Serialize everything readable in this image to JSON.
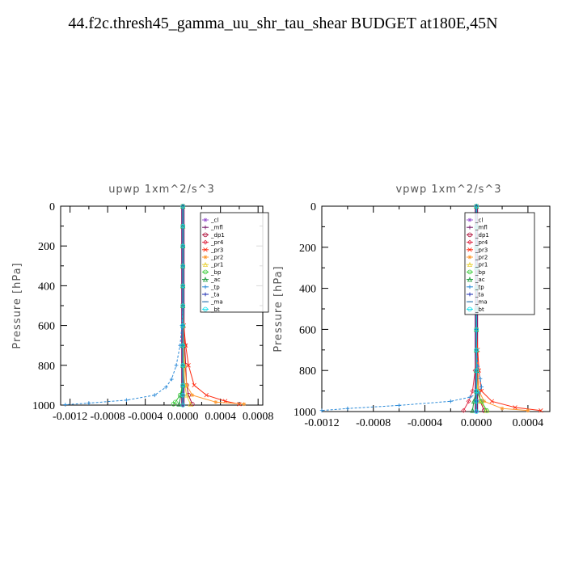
{
  "title": "44.f2c.thresh45_gamma_uu_shr_tau_shear  BUDGET at180E,45N",
  "legend_labels": [
    "_cl",
    "_mfl",
    "_dp1",
    "_pr4",
    "_pr3",
    "_pr2",
    "_pr1",
    "_bp",
    "_ac",
    "_tp",
    "_ta",
    "_ma",
    "_bt"
  ],
  "colors": {
    "_cl": "#9b59d0",
    "_mfl": "#7a1f6e",
    "_dp1": "#b0103a",
    "_pr4": "#e0304a",
    "_pr3": "#ff2a10",
    "_pr2": "#ff9a30",
    "_pr1": "#e8d23a",
    "_bp": "#3acc3a",
    "_ac": "#1a9a3a",
    "_tp": "#2a8ad8",
    "_ta": "#1a2ab0",
    "_ma": "#1a6aaa",
    "_bt": "#10e0ee"
  },
  "chart_data": [
    {
      "type": "line",
      "title": "upwp  1xm^2/s^3",
      "ylabel": "Pressure [hPa]",
      "xlim": [
        -0.0013,
        0.00085
      ],
      "ylim": [
        1000,
        0
      ],
      "xticks": [
        "-0.0012",
        "-0.0008",
        "-0.0004",
        "0.0000",
        "0.0004",
        "0.0008"
      ],
      "xtick_values": [
        -0.0012,
        -0.0008,
        -0.0004,
        0.0,
        0.0004,
        0.0008
      ],
      "yticks": [
        0,
        200,
        400,
        600,
        800,
        1000
      ],
      "legend_position": "top-right",
      "series": [
        {
          "name": "_cl",
          "x": [
            0,
            0,
            0,
            0,
            0,
            0,
            0,
            0,
            0,
            0,
            0,
            0
          ],
          "y": [
            0,
            100,
            200,
            300,
            400,
            500,
            600,
            700,
            800,
            900,
            950,
            1000
          ]
        },
        {
          "name": "_mfl",
          "x": [
            0,
            0,
            0,
            0,
            0,
            0,
            0,
            0,
            0,
            0,
            0,
            0
          ],
          "y": [
            0,
            100,
            200,
            300,
            400,
            500,
            600,
            700,
            800,
            900,
            950,
            1000
          ]
        },
        {
          "name": "_dp1",
          "x": [
            0,
            0,
            0,
            0,
            0,
            0,
            0,
            2e-05,
            3e-05,
            4e-05,
            6e-05,
            0.0001
          ],
          "y": [
            0,
            100,
            200,
            300,
            400,
            500,
            600,
            700,
            800,
            900,
            950,
            995
          ]
        },
        {
          "name": "_pr4",
          "x": [
            0,
            0,
            0,
            0,
            0,
            0,
            0,
            0,
            0,
            0,
            0,
            0
          ],
          "y": [
            0,
            100,
            200,
            300,
            400,
            500,
            600,
            700,
            800,
            900,
            950,
            1000
          ]
        },
        {
          "name": "_pr3",
          "x": [
            0,
            0,
            0,
            0,
            0,
            0,
            1e-05,
            3e-05,
            6e-05,
            0.00012,
            0.00025,
            0.00045,
            0.0006
          ],
          "y": [
            0,
            100,
            200,
            300,
            400,
            500,
            600,
            700,
            800,
            900,
            950,
            980,
            995
          ]
        },
        {
          "name": "_pr2",
          "x": [
            0,
            0,
            0,
            0,
            0,
            0,
            0,
            1e-05,
            2e-05,
            4e-05,
            0.0001,
            0.00035,
            0.00065
          ],
          "y": [
            0,
            100,
            200,
            300,
            400,
            500,
            600,
            700,
            800,
            900,
            950,
            985,
            995
          ]
        },
        {
          "name": "_pr1",
          "x": [
            0,
            0,
            0,
            0,
            0,
            0,
            0,
            0,
            1e-05,
            2e-05,
            4e-05,
            8e-05
          ],
          "y": [
            0,
            100,
            200,
            300,
            400,
            500,
            600,
            700,
            800,
            900,
            950,
            995
          ]
        },
        {
          "name": "_bp",
          "x": [
            0,
            0,
            0,
            0,
            0,
            0,
            0,
            0,
            0,
            0,
            -3e-05,
            -8e-05,
            -0.0001
          ],
          "y": [
            0,
            100,
            200,
            300,
            400,
            500,
            600,
            700,
            800,
            900,
            950,
            985,
            995
          ]
        },
        {
          "name": "_ac",
          "x": [
            0,
            0,
            0,
            0,
            0,
            0,
            0,
            0,
            0,
            0,
            -2e-05,
            -4e-05
          ],
          "y": [
            0,
            100,
            200,
            300,
            400,
            500,
            600,
            700,
            800,
            900,
            950,
            995
          ]
        },
        {
          "name": "_tp",
          "x": [
            0,
            0,
            0,
            0,
            0,
            0,
            -1e-05,
            -3e-05,
            -7e-05,
            -0.00012,
            -0.00018,
            -0.0003,
            -0.0006,
            -0.001,
            -0.00125
          ],
          "y": [
            0,
            100,
            200,
            300,
            400,
            500,
            600,
            700,
            800,
            870,
            910,
            950,
            975,
            990,
            998
          ]
        },
        {
          "name": "_ta",
          "x": [
            0,
            0,
            0,
            0,
            0,
            0,
            0,
            0,
            0,
            0,
            0,
            0
          ],
          "y": [
            0,
            100,
            200,
            300,
            400,
            500,
            600,
            700,
            800,
            900,
            950,
            1000
          ]
        },
        {
          "name": "_ma",
          "x": [
            0,
            0,
            0,
            0,
            0,
            0,
            0,
            0,
            0,
            0,
            0,
            0
          ],
          "y": [
            0,
            100,
            200,
            300,
            400,
            500,
            600,
            700,
            800,
            900,
            950,
            1000
          ]
        },
        {
          "name": "_bt",
          "x": [
            0,
            0,
            0,
            0,
            0,
            0,
            0,
            0,
            0,
            0,
            0,
            0
          ],
          "y": [
            0,
            100,
            200,
            300,
            400,
            500,
            600,
            700,
            800,
            900,
            950,
            1000
          ]
        }
      ]
    },
    {
      "type": "line",
      "title": "vpwp  1xm^2/s^3",
      "ylabel": "Pressure [hPa]",
      "xlim": [
        -0.0012,
        0.00057
      ],
      "ylim": [
        1000,
        0
      ],
      "xticks": [
        "-0.0012",
        "-0.0008",
        "-0.0004",
        "0.0000",
        "0.0004"
      ],
      "xtick_values": [
        -0.0012,
        -0.0008,
        -0.0004,
        0.0,
        0.0004
      ],
      "yticks": [
        0,
        200,
        400,
        600,
        800,
        1000
      ],
      "legend_position": "top-right",
      "series": [
        {
          "name": "_cl",
          "x": [
            0,
            0,
            0,
            0,
            0,
            0,
            0,
            0,
            0,
            0,
            0,
            0
          ],
          "y": [
            0,
            100,
            200,
            300,
            400,
            500,
            600,
            700,
            800,
            900,
            950,
            1000
          ]
        },
        {
          "name": "_mfl",
          "x": [
            0,
            0,
            0,
            0,
            0,
            0,
            0,
            0,
            0,
            0,
            0,
            0
          ],
          "y": [
            0,
            100,
            200,
            300,
            400,
            500,
            600,
            700,
            800,
            900,
            950,
            1000
          ]
        },
        {
          "name": "_dp1",
          "x": [
            0,
            0,
            0,
            0,
            0,
            0,
            0,
            0,
            1e-05,
            2e-05,
            3e-05,
            6e-05
          ],
          "y": [
            0,
            100,
            200,
            300,
            400,
            500,
            600,
            700,
            800,
            900,
            950,
            995
          ]
        },
        {
          "name": "_pr4",
          "x": [
            0,
            0,
            0,
            0,
            0,
            0,
            0,
            0,
            -1e-05,
            -3e-05,
            -6e-05,
            -0.0001
          ],
          "y": [
            0,
            100,
            200,
            300,
            400,
            500,
            600,
            700,
            800,
            900,
            950,
            995
          ]
        },
        {
          "name": "_pr3",
          "x": [
            0,
            0,
            0,
            0,
            0,
            0,
            0,
            1e-05,
            2e-05,
            4e-05,
            0.00012,
            0.0003,
            0.0005
          ],
          "y": [
            0,
            100,
            200,
            300,
            400,
            500,
            600,
            700,
            800,
            900,
            950,
            980,
            995
          ]
        },
        {
          "name": "_pr2",
          "x": [
            0,
            0,
            0,
            0,
            0,
            0,
            0,
            0,
            1e-05,
            2e-05,
            6e-05,
            0.0002,
            0.0004
          ],
          "y": [
            0,
            100,
            200,
            300,
            400,
            500,
            600,
            700,
            800,
            900,
            950,
            985,
            995
          ]
        },
        {
          "name": "_pr1",
          "x": [
            0,
            0,
            0,
            0,
            0,
            0,
            0,
            0,
            0,
            1e-05,
            3e-05,
            8e-05
          ],
          "y": [
            0,
            100,
            200,
            300,
            400,
            500,
            600,
            700,
            800,
            900,
            950,
            995
          ]
        },
        {
          "name": "_bp",
          "x": [
            0,
            0,
            0,
            0,
            0,
            0,
            0,
            0,
            0,
            0,
            4e-05,
            8e-05
          ],
          "y": [
            0,
            100,
            200,
            300,
            400,
            500,
            600,
            700,
            800,
            900,
            950,
            995
          ]
        },
        {
          "name": "_ac",
          "x": [
            0,
            0,
            0,
            0,
            0,
            0,
            0,
            0,
            0,
            0,
            -2e-05,
            -3e-05
          ],
          "y": [
            0,
            100,
            200,
            300,
            400,
            500,
            600,
            700,
            800,
            900,
            950,
            995
          ]
        },
        {
          "name": "_tp",
          "x": [
            0,
            0,
            0,
            0,
            0,
            0,
            0,
            0,
            1e-05,
            3e-05,
            4e-05,
            2e-05,
            -5e-05,
            -0.0002,
            -0.0006,
            -0.001,
            -0.0012
          ],
          "y": [
            0,
            100,
            200,
            300,
            400,
            500,
            600,
            700,
            780,
            840,
            880,
            910,
            930,
            950,
            970,
            985,
            995
          ]
        },
        {
          "name": "_ta",
          "x": [
            0,
            0,
            0,
            0,
            0,
            0,
            0,
            0,
            0,
            0,
            0,
            0
          ],
          "y": [
            0,
            100,
            200,
            300,
            400,
            500,
            600,
            700,
            800,
            900,
            950,
            1000
          ]
        },
        {
          "name": "_ma",
          "x": [
            0,
            0,
            0,
            0,
            0,
            0,
            0,
            0,
            0,
            0,
            0,
            0
          ],
          "y": [
            0,
            100,
            200,
            300,
            400,
            500,
            600,
            700,
            800,
            900,
            950,
            1000
          ]
        },
        {
          "name": "_bt",
          "x": [
            0,
            0,
            0,
            0,
            0,
            0,
            0,
            0,
            0,
            0,
            0,
            0
          ],
          "y": [
            0,
            100,
            200,
            300,
            400,
            500,
            600,
            700,
            800,
            900,
            950,
            1000
          ]
        }
      ]
    }
  ]
}
